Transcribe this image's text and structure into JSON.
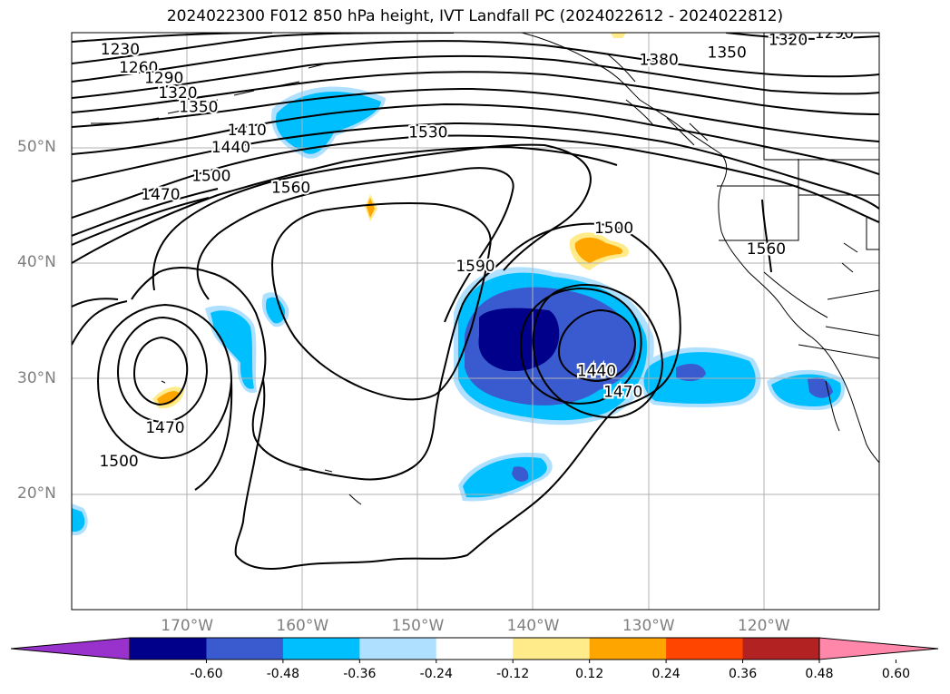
{
  "title": "2024022300 F012 850 hPa height, IVT Landfall PC (2024022612 - 2024022812)",
  "map": {
    "lon_range": [
      -180,
      -110
    ],
    "lat_range": [
      10,
      60
    ],
    "lat_ticks": [
      {
        "lat": 20,
        "label": "20°N"
      },
      {
        "lat": 30,
        "label": "30°N"
      },
      {
        "lat": 40,
        "label": "40°N"
      },
      {
        "lat": 50,
        "label": "50°N"
      }
    ],
    "lon_ticks": [
      {
        "lon": -170,
        "label": "170°W"
      },
      {
        "lon": -160,
        "label": "160°W"
      },
      {
        "lon": -150,
        "label": "150°W"
      },
      {
        "lon": -140,
        "label": "140°W"
      },
      {
        "lon": -130,
        "label": "130°W"
      },
      {
        "lon": -120,
        "label": "120°W"
      }
    ],
    "gridlines": true,
    "contour_labels": [
      {
        "text": "1230",
        "lon": -175.8,
        "lat": 58.6
      },
      {
        "text": "1260",
        "lon": -174.2,
        "lat": 57.0
      },
      {
        "text": "1290",
        "lon": -172.0,
        "lat": 56.1
      },
      {
        "text": "1320",
        "lon": -170.8,
        "lat": 54.8
      },
      {
        "text": "1350",
        "lon": -169.0,
        "lat": 53.6
      },
      {
        "text": "1410",
        "lon": -164.8,
        "lat": 51.6
      },
      {
        "text": "1440",
        "lon": -166.2,
        "lat": 50.1
      },
      {
        "text": "1500",
        "lon": -167.9,
        "lat": 47.6
      },
      {
        "text": "1470",
        "lon": -172.3,
        "lat": 46.0
      },
      {
        "text": "1560",
        "lon": -161.0,
        "lat": 46.6
      },
      {
        "text": "1530",
        "lon": -149.1,
        "lat": 51.4
      },
      {
        "text": "1590",
        "lon": -145.0,
        "lat": 39.8
      },
      {
        "text": "1500",
        "lon": -133.0,
        "lat": 43.1
      },
      {
        "text": "1440",
        "lon": -134.5,
        "lat": 30.7
      },
      {
        "text": "1470",
        "lon": -132.2,
        "lat": 28.9
      },
      {
        "text": "1470",
        "lon": -171.9,
        "lat": 25.8
      },
      {
        "text": "1500",
        "lon": -175.9,
        "lat": 22.9
      },
      {
        "text": "1380",
        "lon": -129.1,
        "lat": 57.7
      },
      {
        "text": "1350",
        "lon": -123.2,
        "lat": 58.3
      },
      {
        "text": "1320",
        "lon": -117.9,
        "lat": 59.4
      },
      {
        "text": "1290",
        "lon": -113.9,
        "lat": 60.0
      },
      {
        "text": "1560",
        "lon": -119.8,
        "lat": 41.3
      }
    ]
  },
  "colorbar": {
    "ticks": [
      "-0.60",
      "-0.48",
      "-0.36",
      "-0.24",
      "-0.12",
      "0.12",
      "0.24",
      "0.36",
      "0.48",
      "0.60"
    ],
    "colors": [
      "#9932cc",
      "#00008b",
      "#3a5bd0",
      "#00bfff",
      "#b0e0ff",
      "#ffffff",
      "#ffeb8a",
      "#ffa500",
      "#ff4500",
      "#b22222",
      "#ff88aa"
    ]
  }
}
